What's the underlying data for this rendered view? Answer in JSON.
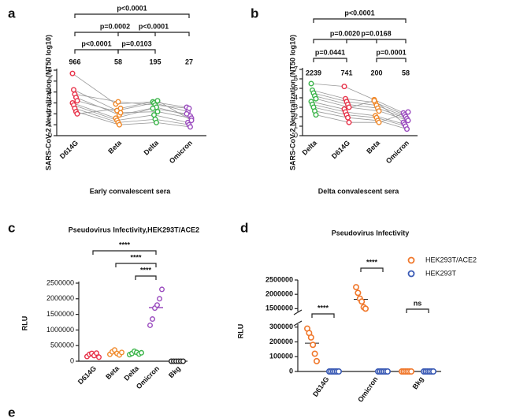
{
  "chart_data": [
    {
      "type": "paired",
      "label": "a",
      "ylabel": "SARS-CoV-2 Neutralization (NT50 log10)",
      "xlabel": "Early convalescent sera",
      "categories": [
        "D614G",
        "Beta",
        "Delta",
        "Omicron"
      ],
      "colors": [
        "#e8334a",
        "#f08a2c",
        "#3cb54a",
        "#9b4dbf"
      ],
      "ylim": [
        0,
        6
      ],
      "yticks": [
        0,
        1,
        2,
        3,
        4,
        5,
        6
      ],
      "titers": [
        966,
        58,
        195,
        27
      ],
      "comparison_rows": [
        [
          {
            "between": [
              0,
              3
            ],
            "text": "p<0.0001"
          }
        ],
        [
          {
            "between": [
              0,
              2
            ],
            "text": "p=0.0002"
          },
          {
            "between": [
              1,
              3
            ],
            "text": "p<0.0001"
          }
        ],
        [
          {
            "between": [
              0,
              1
            ],
            "text": "p<0.0001"
          },
          {
            "between": [
              1,
              2
            ],
            "text": "p=0.0103"
          }
        ]
      ],
      "series": [
        {
          "values": [
            5.7,
            2.9,
            3.1,
            2.6
          ]
        },
        {
          "values": [
            4.2,
            2.3,
            3.0,
            2.2
          ]
        },
        {
          "values": [
            3.8,
            3.1,
            2.8,
            2.5
          ]
        },
        {
          "values": [
            3.5,
            1.9,
            2.6,
            1.8
          ]
        },
        {
          "values": [
            3.2,
            2.1,
            2.2,
            1.6
          ]
        },
        {
          "values": [
            3.0,
            1.6,
            2.5,
            2.0
          ]
        },
        {
          "values": [
            2.8,
            1.4,
            1.9,
            1.2
          ]
        },
        {
          "values": [
            2.5,
            1.2,
            1.5,
            1.0
          ]
        },
        {
          "values": [
            2.2,
            1.0,
            1.2,
            0.8
          ]
        },
        {
          "values": [
            2.0,
            2.5,
            3.2,
            1.4
          ]
        }
      ]
    },
    {
      "type": "paired",
      "label": "b",
      "ylabel": "SARS-CoV-2 Neutralization (NT50 log10)",
      "xlabel": "Delta convalescent sera",
      "categories": [
        "Delta",
        "D614G",
        "Beta",
        "Omicron"
      ],
      "colors": [
        "#3cb54a",
        "#e8334a",
        "#f08a2c",
        "#9b4dbf"
      ],
      "ylim": [
        0,
        7
      ],
      "yticks": [
        0,
        1,
        2,
        3,
        4,
        5,
        6,
        7
      ],
      "titers": [
        2239,
        741,
        200,
        58
      ],
      "comparison_rows": [
        [
          {
            "between": [
              0,
              3
            ],
            "text": "p<0.0001"
          }
        ],
        [
          {
            "between": [
              0,
              2
            ],
            "text": "p=0.0020"
          },
          {
            "between": [
              1,
              3
            ],
            "text": "p=0.0168"
          }
        ],
        [
          {
            "between": [
              0,
              1
            ],
            "text": "p=0.0441"
          },
          {
            "between": [
              2,
              3
            ],
            "text": "p=0.0001"
          }
        ]
      ],
      "series": [
        {
          "values": [
            5.5,
            5.2,
            3.8,
            2.4
          ]
        },
        {
          "values": [
            4.8,
            3.9,
            3.5,
            2.2
          ]
        },
        {
          "values": [
            4.5,
            3.6,
            3.2,
            2.0
          ]
        },
        {
          "values": [
            4.2,
            3.3,
            2.9,
            1.8
          ]
        },
        {
          "values": [
            3.9,
            3.0,
            2.6,
            1.6
          ]
        },
        {
          "values": [
            3.6,
            2.8,
            3.7,
            1.4
          ]
        },
        {
          "values": [
            3.3,
            2.5,
            2.1,
            1.2
          ]
        },
        {
          "values": [
            3.0,
            2.2,
            1.9,
            1.0
          ]
        },
        {
          "values": [
            2.6,
            1.9,
            1.6,
            0.7
          ]
        },
        {
          "values": [
            2.2,
            1.4,
            1.4,
            2.5
          ]
        }
      ]
    },
    {
      "type": "dot",
      "label": "c",
      "title": "Pseudovirus Infectivity,HEK293T/ACE2",
      "ylabel": "RLU",
      "categories": [
        "D614G",
        "Beta",
        "Delta",
        "Omicron",
        "Bkg"
      ],
      "colors": [
        "#e8334a",
        "#f08a2c",
        "#3cb54a",
        "#9b4dbf",
        "#222222"
      ],
      "ylim": [
        0,
        2500000
      ],
      "yticks": [
        0,
        500000,
        1000000,
        1500000,
        2000000,
        2500000
      ],
      "values": [
        [
          150000,
          220000,
          250000,
          180000,
          260000,
          130000
        ],
        [
          220000,
          300000,
          360000,
          250000,
          200000,
          280000
        ],
        [
          210000,
          250000,
          320000,
          280000,
          230000,
          270000
        ],
        [
          1150000,
          1350000,
          1700000,
          1800000,
          2000000,
          2300000
        ],
        [
          0,
          0,
          0,
          0,
          0,
          0
        ]
      ],
      "comparisons": [
        {
          "between": [
            0,
            3
          ],
          "text": "****"
        },
        {
          "between": [
            1,
            3
          ],
          "text": "****"
        },
        {
          "between": [
            2,
            3
          ],
          "text": "****"
        }
      ]
    },
    {
      "type": "broken",
      "label": "d",
      "title": "Pseudovirus Infectivity",
      "ylabel": "RLU",
      "categories": [
        "D614G",
        "Omicron",
        "Bkg"
      ],
      "ylim_lower": [
        0,
        320000
      ],
      "ylim_upper": [
        1400000,
        2500000
      ],
      "yticks": [
        0,
        100000,
        200000,
        300000,
        1500000,
        2000000,
        2500000
      ],
      "series": [
        {
          "name": "HEK293T/ACE2",
          "color": "#f0782c",
          "values": [
            [
              290000,
              260000,
              230000,
              180000,
              120000,
              70000
            ],
            [
              2250000,
              2050000,
              1850000,
              1750000,
              1550000,
              1500000
            ],
            [
              0,
              0,
              0,
              0,
              0,
              0
            ]
          ]
        },
        {
          "name": "HEK293T",
          "color": "#3b5bb5",
          "values": [
            [
              0,
              0,
              0,
              0,
              0,
              0
            ],
            [
              0,
              0,
              0,
              0,
              0,
              0
            ],
            [
              0,
              0,
              0,
              0,
              0,
              0
            ]
          ]
        }
      ],
      "comparisons": [
        "****",
        "****",
        "ns"
      ]
    }
  ],
  "partial_panel_label": "e"
}
